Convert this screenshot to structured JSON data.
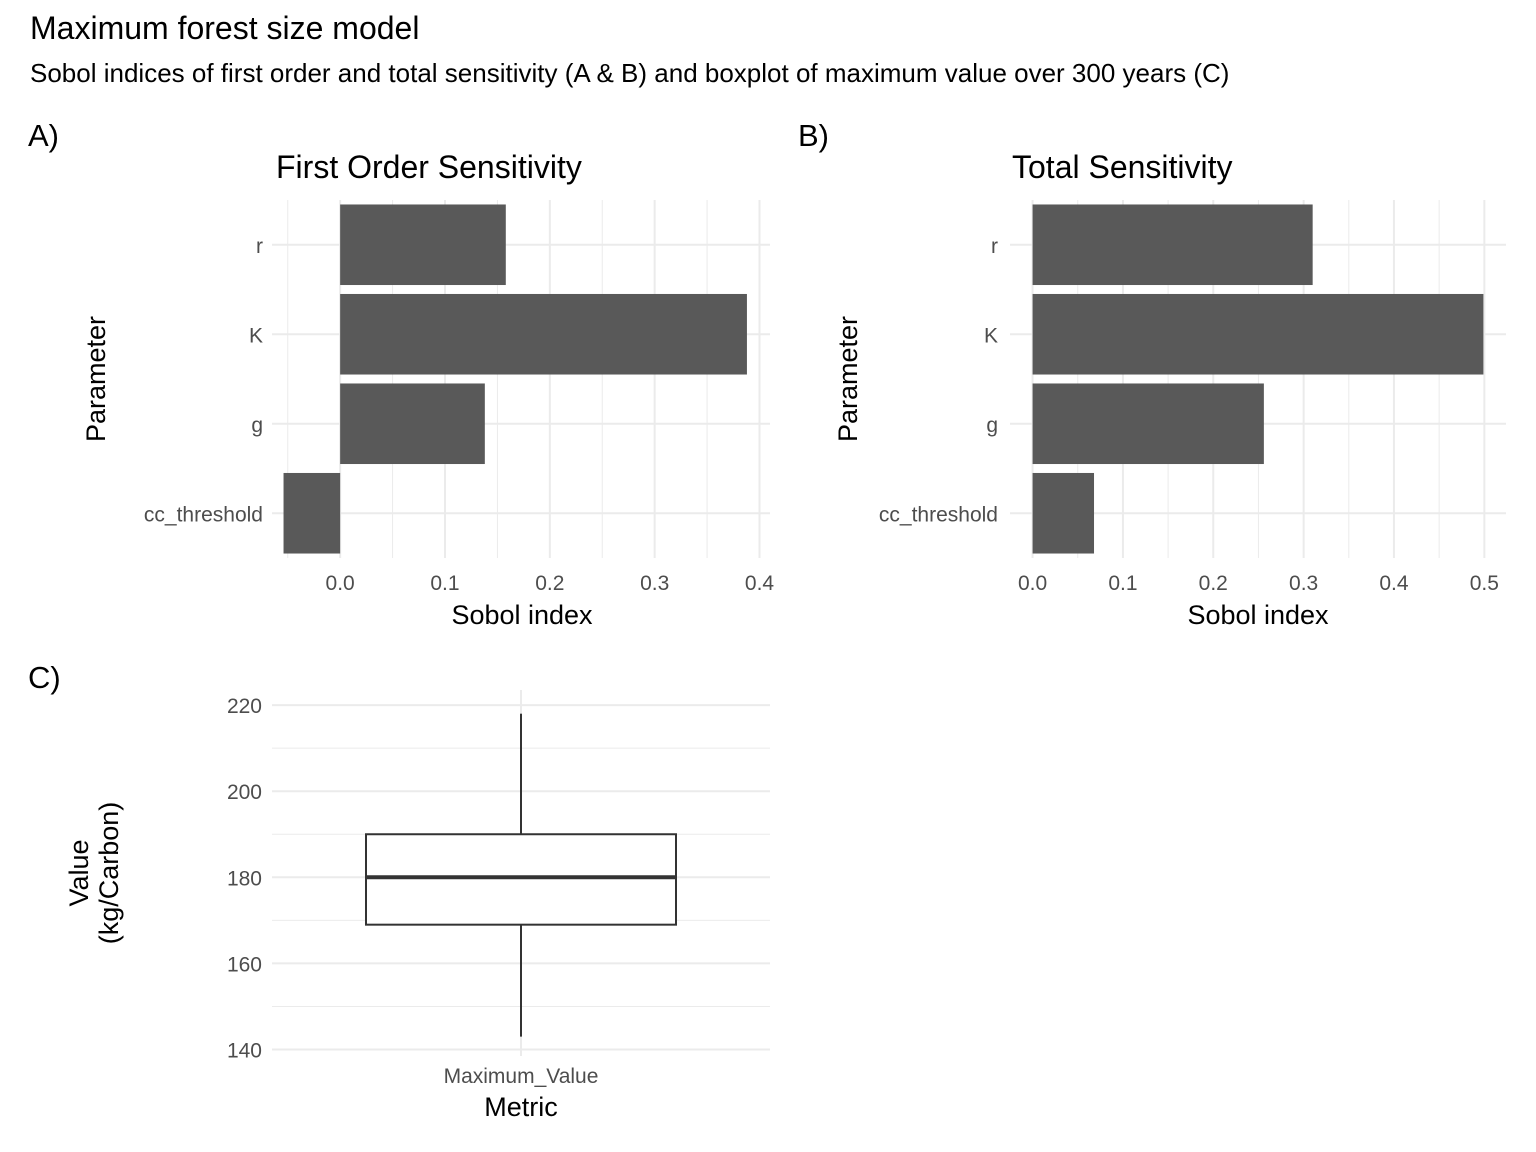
{
  "title": "Maximum forest size model",
  "subtitle": "Sobol indices of first order and total sensitivity (A & B) and boxplot of maximum value over 300 years (C)",
  "panels": [
    "A)",
    "B)",
    "C)"
  ],
  "colors": {
    "bar": "#595959",
    "grid": "#ebebeb",
    "tick_text": "#4d4d4d",
    "box_line": "#333333"
  },
  "chart_data": [
    {
      "type": "bar",
      "orientation": "horizontal",
      "title": "First Order Sensitivity",
      "xlabel": "Sobol index",
      "ylabel": "Parameter",
      "categories": [
        "r",
        "K",
        "g",
        "cc_threshold"
      ],
      "values": [
        0.158,
        0.388,
        0.138,
        -0.054
      ],
      "xlim": [
        -0.065,
        0.41
      ],
      "xticks": [
        0.0,
        0.1,
        0.2,
        0.3,
        0.4
      ],
      "xtick_labels": [
        "0.0",
        "0.1",
        "0.2",
        "0.3",
        "0.4"
      ],
      "grid": true
    },
    {
      "type": "bar",
      "orientation": "horizontal",
      "title": "Total Sensitivity",
      "xlabel": "Sobol index",
      "ylabel": "Parameter",
      "categories": [
        "r",
        "K",
        "g",
        "cc_threshold"
      ],
      "values": [
        0.31,
        0.499,
        0.256,
        0.068
      ],
      "xlim": [
        -0.025,
        0.524
      ],
      "xticks": [
        0.0,
        0.1,
        0.2,
        0.3,
        0.4,
        0.5
      ],
      "xtick_labels": [
        "0.0",
        "0.1",
        "0.2",
        "0.3",
        "0.4",
        "0.5"
      ],
      "grid": true
    },
    {
      "type": "boxplot",
      "title": "",
      "xlabel": "Metric",
      "ylabel": "Value\n(kg/Carbon)",
      "categories": [
        "Maximum_Value"
      ],
      "box": {
        "min": 143,
        "q1": 169,
        "median": 180,
        "q3": 190,
        "max": 218
      },
      "ylim": [
        138.5,
        223.5
      ],
      "yticks": [
        140,
        160,
        180,
        200,
        220
      ],
      "ytick_labels": [
        "140",
        "160",
        "180",
        "200",
        "220"
      ],
      "grid": true
    }
  ]
}
